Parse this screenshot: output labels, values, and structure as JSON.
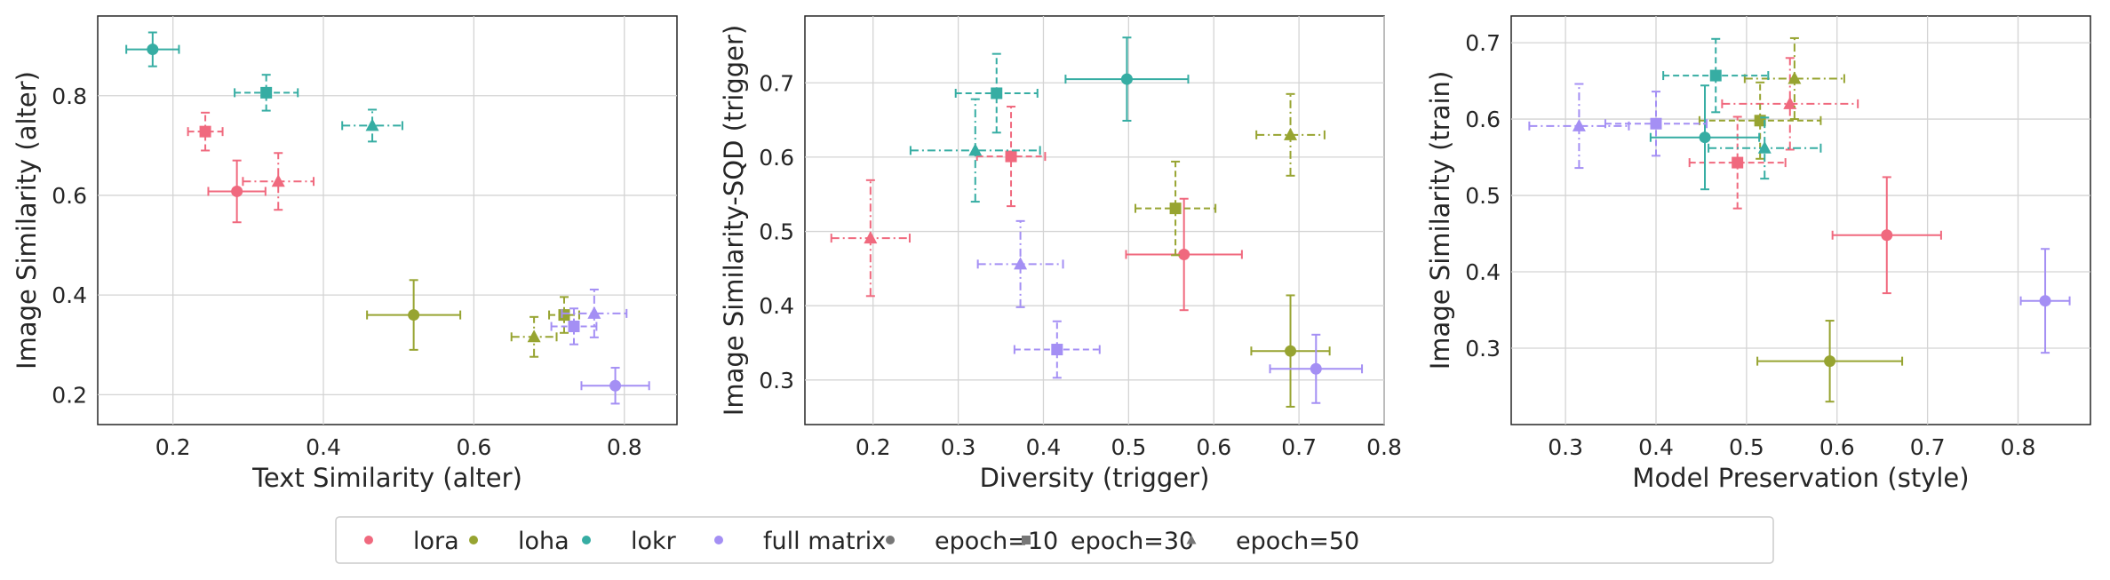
{
  "colors": {
    "lora": "#f0697e",
    "loha": "#97a431",
    "lokr": "#36ada3",
    "full matrix": "#a48ff4",
    "marker_only": "#777777"
  },
  "legend": {
    "items": [
      {
        "label": "lora",
        "kind": "color",
        "method": "lora"
      },
      {
        "label": "loha",
        "kind": "color",
        "method": "loha"
      },
      {
        "label": "lokr",
        "kind": "color",
        "method": "lokr"
      },
      {
        "label": "full matrix",
        "kind": "color",
        "method": "full matrix"
      },
      {
        "label": "epoch=10",
        "kind": "marker",
        "marker": "circle"
      },
      {
        "label": "epoch=30",
        "kind": "marker",
        "marker": "square"
      },
      {
        "label": "epoch=50",
        "kind": "marker",
        "marker": "triangle"
      }
    ]
  },
  "chart_data": [
    {
      "type": "scatter",
      "xlabel": "Text Similarity (alter)",
      "ylabel": "Image Similarity (alter)",
      "xlim": [
        0.1,
        0.87
      ],
      "ylim": [
        0.14,
        0.96
      ],
      "xticks": [
        0.2,
        0.4,
        0.6,
        0.8
      ],
      "yticks": [
        0.2,
        0.4,
        0.6,
        0.8
      ],
      "grid": true,
      "points": [
        {
          "method": "lora",
          "epoch": 10,
          "x": 0.285,
          "y": 0.608,
          "xerr": 0.038,
          "yerr": 0.062
        },
        {
          "method": "lora",
          "epoch": 30,
          "x": 0.243,
          "y": 0.728,
          "xerr": 0.023,
          "yerr": 0.038
        },
        {
          "method": "lora",
          "epoch": 50,
          "x": 0.34,
          "y": 0.628,
          "xerr": 0.047,
          "yerr": 0.057
        },
        {
          "method": "loha",
          "epoch": 10,
          "x": 0.52,
          "y": 0.36,
          "xerr": 0.062,
          "yerr": 0.07
        },
        {
          "method": "loha",
          "epoch": 30,
          "x": 0.72,
          "y": 0.36,
          "xerr": 0.02,
          "yerr": 0.036
        },
        {
          "method": "loha",
          "epoch": 50,
          "x": 0.68,
          "y": 0.316,
          "xerr": 0.03,
          "yerr": 0.04
        },
        {
          "method": "lokr",
          "epoch": 10,
          "x": 0.173,
          "y": 0.893,
          "xerr": 0.035,
          "yerr": 0.034
        },
        {
          "method": "lokr",
          "epoch": 30,
          "x": 0.324,
          "y": 0.806,
          "xerr": 0.042,
          "yerr": 0.036
        },
        {
          "method": "lokr",
          "epoch": 50,
          "x": 0.465,
          "y": 0.74,
          "xerr": 0.04,
          "yerr": 0.032
        },
        {
          "method": "full matrix",
          "epoch": 10,
          "x": 0.788,
          "y": 0.218,
          "xerr": 0.045,
          "yerr": 0.036
        },
        {
          "method": "full matrix",
          "epoch": 30,
          "x": 0.733,
          "y": 0.337,
          "xerr": 0.03,
          "yerr": 0.036
        },
        {
          "method": "full matrix",
          "epoch": 50,
          "x": 0.76,
          "y": 0.363,
          "xerr": 0.043,
          "yerr": 0.048
        }
      ]
    },
    {
      "type": "scatter",
      "xlabel": "Diversity (trigger)",
      "ylabel": "Image Similarity-SQD (trigger)",
      "xlim": [
        0.12,
        0.8
      ],
      "ylim": [
        0.24,
        0.79
      ],
      "xticks": [
        0.2,
        0.3,
        0.4,
        0.5,
        0.6,
        0.7,
        0.8
      ],
      "yticks": [
        0.3,
        0.4,
        0.5,
        0.6,
        0.7
      ],
      "grid": true,
      "points": [
        {
          "method": "lora",
          "epoch": 10,
          "x": 0.565,
          "y": 0.469,
          "xerr": 0.068,
          "yerr": 0.075
        },
        {
          "method": "lora",
          "epoch": 30,
          "x": 0.362,
          "y": 0.601,
          "xerr": 0.04,
          "yerr": 0.067
        },
        {
          "method": "lora",
          "epoch": 50,
          "x": 0.197,
          "y": 0.491,
          "xerr": 0.046,
          "yerr": 0.078
        },
        {
          "method": "loha",
          "epoch": 10,
          "x": 0.69,
          "y": 0.339,
          "xerr": 0.046,
          "yerr": 0.075
        },
        {
          "method": "loha",
          "epoch": 30,
          "x": 0.555,
          "y": 0.531,
          "xerr": 0.047,
          "yerr": 0.063
        },
        {
          "method": "loha",
          "epoch": 50,
          "x": 0.69,
          "y": 0.63,
          "xerr": 0.04,
          "yerr": 0.055
        },
        {
          "method": "lokr",
          "epoch": 10,
          "x": 0.498,
          "y": 0.705,
          "xerr": 0.072,
          "yerr": 0.056
        },
        {
          "method": "lokr",
          "epoch": 30,
          "x": 0.345,
          "y": 0.686,
          "xerr": 0.048,
          "yerr": 0.053
        },
        {
          "method": "lokr",
          "epoch": 50,
          "x": 0.32,
          "y": 0.609,
          "xerr": 0.076,
          "yerr": 0.069
        },
        {
          "method": "full matrix",
          "epoch": 10,
          "x": 0.72,
          "y": 0.315,
          "xerr": 0.054,
          "yerr": 0.046
        },
        {
          "method": "full matrix",
          "epoch": 30,
          "x": 0.416,
          "y": 0.341,
          "xerr": 0.05,
          "yerr": 0.038
        },
        {
          "method": "full matrix",
          "epoch": 50,
          "x": 0.373,
          "y": 0.456,
          "xerr": 0.05,
          "yerr": 0.058
        }
      ]
    },
    {
      "type": "scatter",
      "xlabel": "Model Preservation (style)",
      "ylabel": "Image Similarity (train)",
      "xlim": [
        0.24,
        0.88
      ],
      "ylim": [
        0.2,
        0.735
      ],
      "xticks": [
        0.3,
        0.4,
        0.5,
        0.6,
        0.7,
        0.8
      ],
      "yticks": [
        0.3,
        0.4,
        0.5,
        0.6,
        0.7
      ],
      "grid": true,
      "points": [
        {
          "method": "lora",
          "epoch": 10,
          "x": 0.655,
          "y": 0.448,
          "xerr": 0.06,
          "yerr": 0.076
        },
        {
          "method": "lora",
          "epoch": 30,
          "x": 0.49,
          "y": 0.543,
          "xerr": 0.053,
          "yerr": 0.06
        },
        {
          "method": "lora",
          "epoch": 50,
          "x": 0.548,
          "y": 0.62,
          "xerr": 0.075,
          "yerr": 0.06
        },
        {
          "method": "loha",
          "epoch": 10,
          "x": 0.592,
          "y": 0.283,
          "xerr": 0.08,
          "yerr": 0.053
        },
        {
          "method": "loha",
          "epoch": 30,
          "x": 0.515,
          "y": 0.598,
          "xerr": 0.067,
          "yerr": 0.05
        },
        {
          "method": "loha",
          "epoch": 50,
          "x": 0.553,
          "y": 0.653,
          "xerr": 0.055,
          "yerr": 0.053
        },
        {
          "method": "lokr",
          "epoch": 10,
          "x": 0.454,
          "y": 0.576,
          "xerr": 0.06,
          "yerr": 0.068
        },
        {
          "method": "lokr",
          "epoch": 30,
          "x": 0.466,
          "y": 0.657,
          "xerr": 0.058,
          "yerr": 0.048
        },
        {
          "method": "lokr",
          "epoch": 50,
          "x": 0.52,
          "y": 0.562,
          "xerr": 0.062,
          "yerr": 0.04
        },
        {
          "method": "full matrix",
          "epoch": 10,
          "x": 0.83,
          "y": 0.362,
          "xerr": 0.027,
          "yerr": 0.068
        },
        {
          "method": "full matrix",
          "epoch": 30,
          "x": 0.4,
          "y": 0.594,
          "xerr": 0.056,
          "yerr": 0.042
        },
        {
          "method": "full matrix",
          "epoch": 50,
          "x": 0.315,
          "y": 0.591,
          "xerr": 0.055,
          "yerr": 0.055
        }
      ]
    }
  ]
}
